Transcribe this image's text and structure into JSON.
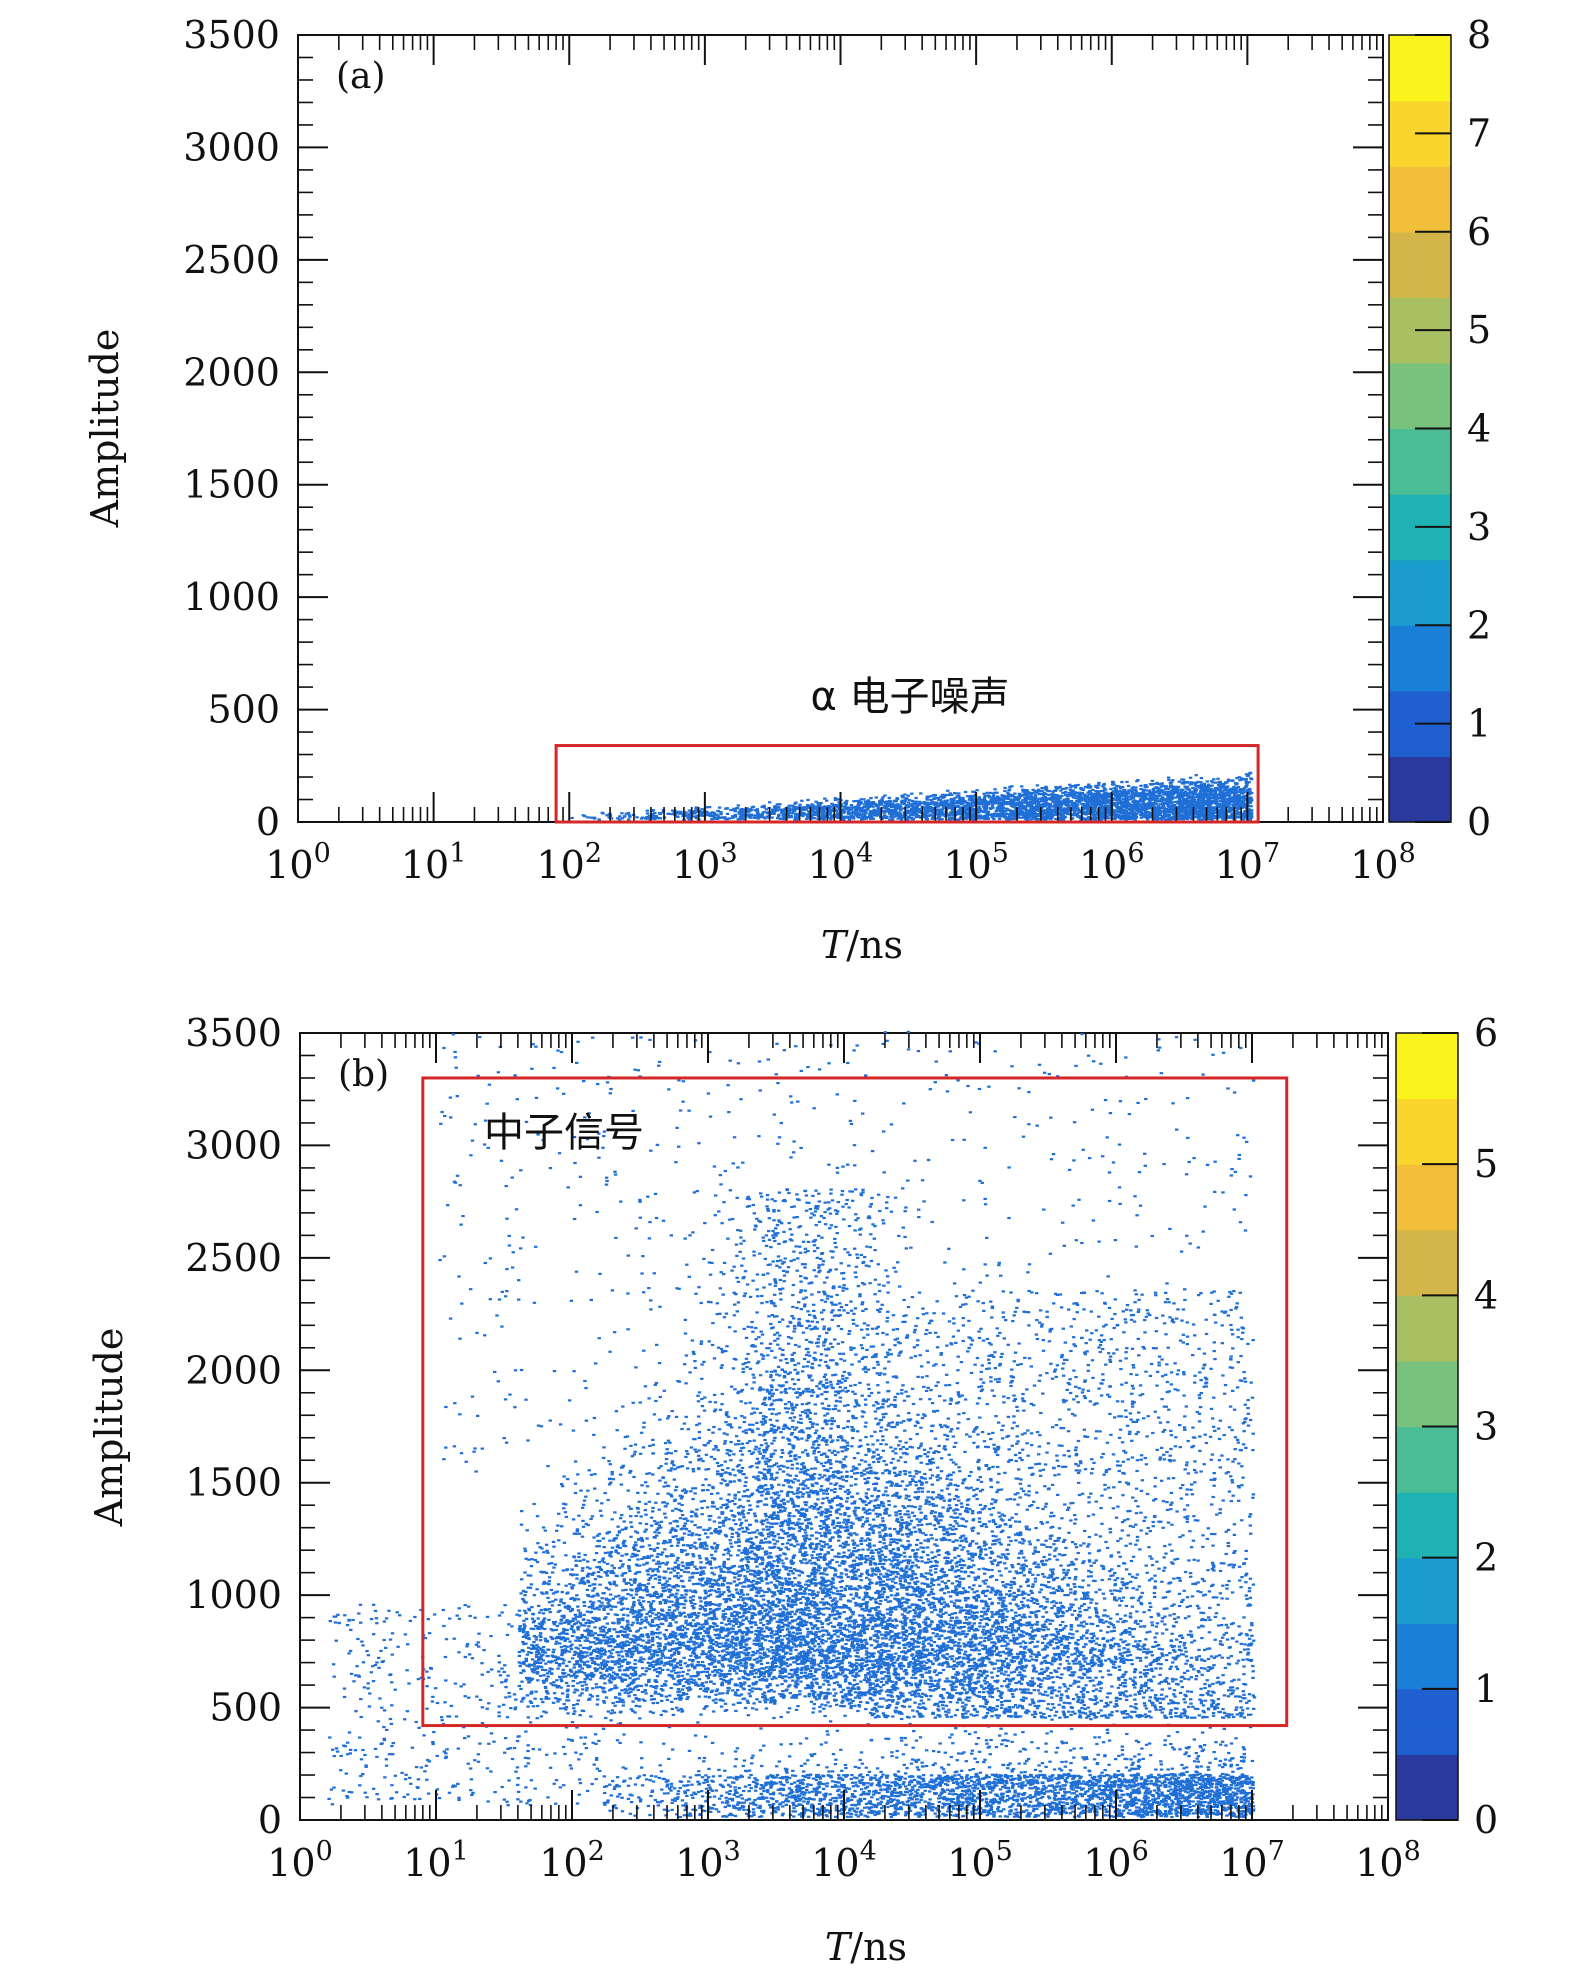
{
  "chart_data": [
    {
      "type": "heatmap",
      "panel_label": "(a)",
      "xlabel_italic": "T",
      "xlabel_rest": "/ns",
      "ylabel": "Amplitude",
      "xscale": "log",
      "xlim": [
        1,
        100000000
      ],
      "ylim": [
        0,
        3500
      ],
      "x_tick_bases": [
        "10",
        "10",
        "10",
        "10",
        "10",
        "10",
        "10",
        "10",
        "10"
      ],
      "x_tick_exponents": [
        "0",
        "1",
        "2",
        "3",
        "4",
        "5",
        "6",
        "7",
        "8"
      ],
      "y_ticks": [
        "0",
        "500",
        "1000",
        "1500",
        "2000",
        "2500",
        "3000",
        "3500"
      ],
      "colorbar_range": [
        0,
        8
      ],
      "colorbar_ticks": [
        "0",
        "1",
        "2",
        "3",
        "4",
        "5",
        "6",
        "7",
        "8"
      ],
      "annotation": {
        "text": "α 电子噪声",
        "region": {
          "x_min": 80,
          "x_max": 12000000,
          "y_min": 0,
          "y_max": 340
        }
      },
      "density_region": "events spread from ~1e2 to 1e7 ns, amplitude 0–220, band widening with T"
    },
    {
      "type": "heatmap",
      "panel_label": "(b)",
      "xlabel_italic": "T",
      "xlabel_rest": "/ns",
      "ylabel": "Amplitude",
      "xscale": "log",
      "xlim": [
        1,
        100000000
      ],
      "ylim": [
        0,
        3500
      ],
      "x_tick_bases": [
        "10",
        "10",
        "10",
        "10",
        "10",
        "10",
        "10",
        "10",
        "10"
      ],
      "x_tick_exponents": [
        "0",
        "1",
        "2",
        "3",
        "4",
        "5",
        "6",
        "7",
        "8"
      ],
      "y_ticks": [
        "0",
        "500",
        "1000",
        "1500",
        "2000",
        "2500",
        "3000",
        "3500"
      ],
      "colorbar_range": [
        0,
        6
      ],
      "colorbar_ticks": [
        "0",
        "1",
        "2",
        "3",
        "4",
        "5",
        "6"
      ],
      "annotation": {
        "text": "中子信号",
        "region": {
          "x_min": 8,
          "x_max": 18000000,
          "y_min": 420,
          "y_max": 3300
        }
      },
      "density_region": "dense cloud 1e2–1e7 ns, amplitude 400–2500 peaking near 5e3 ns; low band 0–200"
    }
  ],
  "colors": {
    "box": "#d62728",
    "points": "#1f6fd6",
    "cbar": [
      "#2a3a9c",
      "#1f5fd0",
      "#1a7fd8",
      "#1a9ccf",
      "#1fb2b5",
      "#4abd96",
      "#79c27d",
      "#a8bf62",
      "#d2b64a",
      "#f1bf3a",
      "#f9d52e",
      "#fbf31c"
    ]
  }
}
